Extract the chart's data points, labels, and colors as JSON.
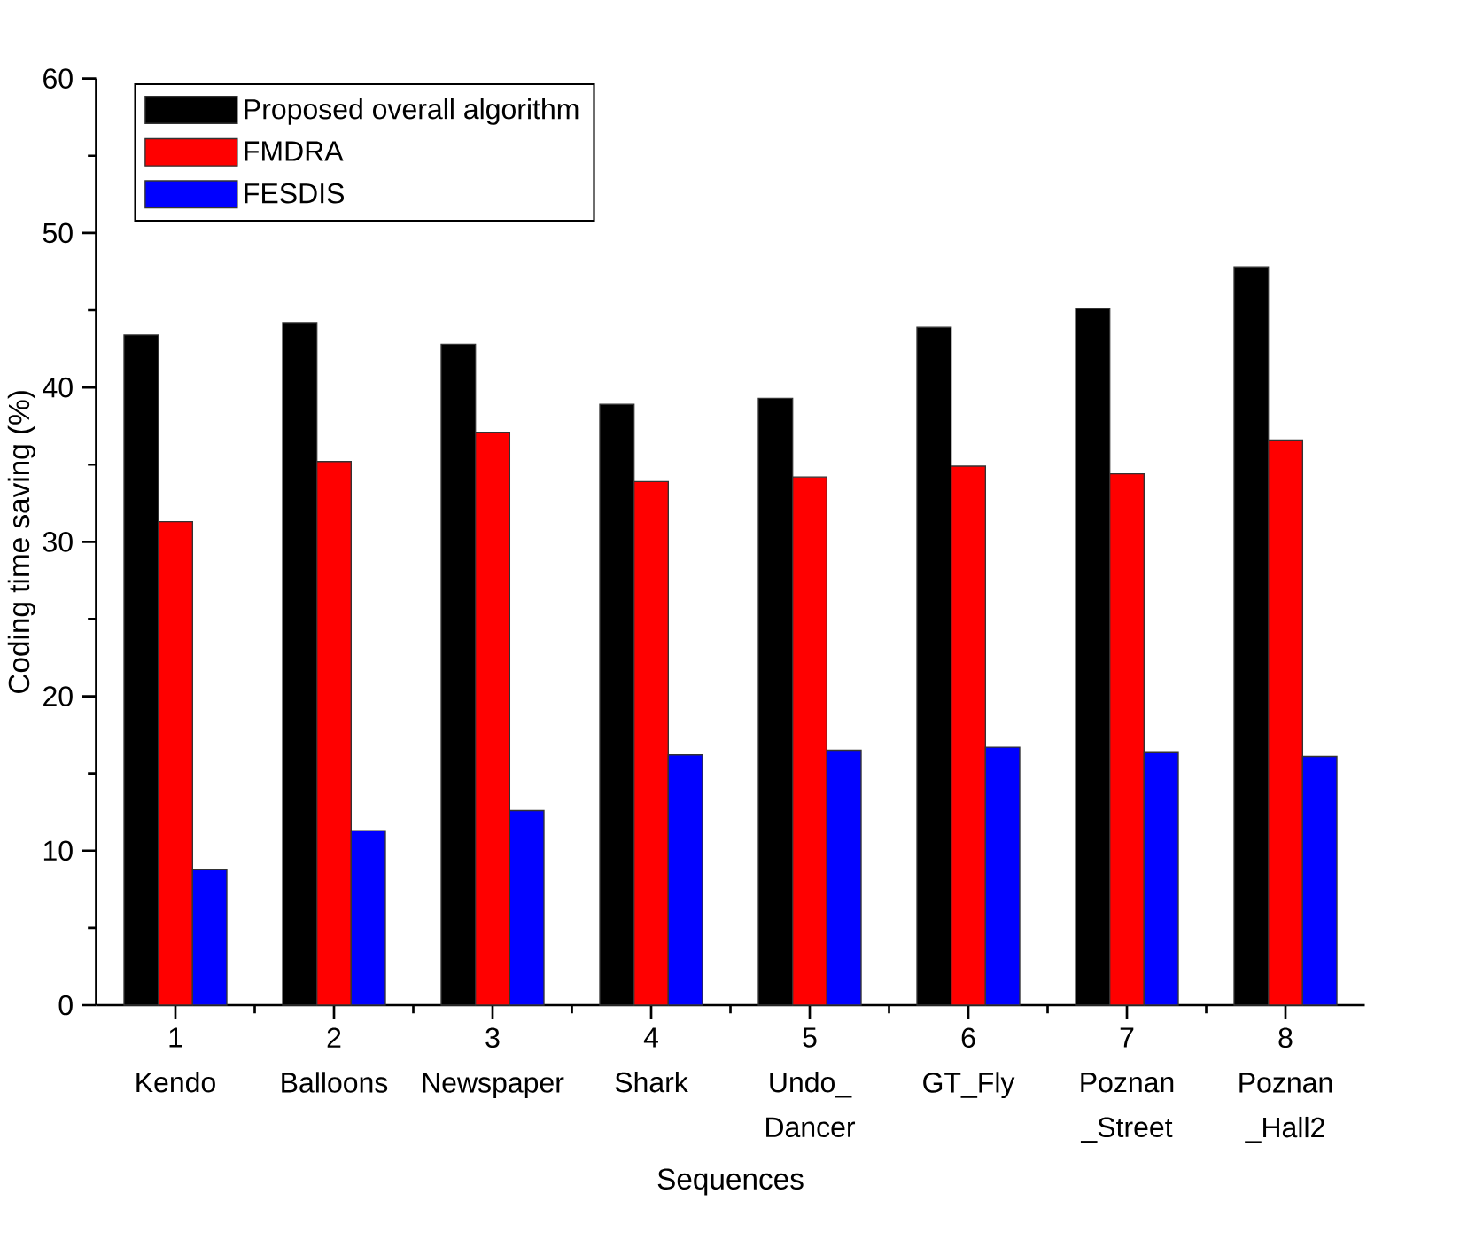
{
  "chart_data": {
    "type": "bar",
    "xlabel": "Sequences",
    "ylabel": "Coding time saving (%)",
    "categories": [
      "1 Kendo",
      "2 Balloons",
      "3 Newspaper",
      "4 Shark",
      "5 Undo_ Dancer",
      "6 GT_Fly",
      "7 Poznan _Street",
      "8 Poznan _Hall2"
    ],
    "series": [
      {
        "name": "Proposed overall algorithm",
        "color": "#000000",
        "values": [
          43.4,
          44.2,
          42.8,
          38.9,
          39.3,
          43.9,
          45.1,
          47.8
        ]
      },
      {
        "name": "FMDRA",
        "color": "#ff0000",
        "values": [
          31.3,
          35.2,
          37.1,
          33.9,
          34.2,
          34.9,
          34.4,
          36.6
        ]
      },
      {
        "name": "FESDIS",
        "color": "#0000ff",
        "values": [
          8.8,
          11.3,
          12.6,
          16.2,
          16.5,
          16.7,
          16.4,
          16.1
        ]
      }
    ],
    "ylim": [
      0,
      60
    ],
    "yticks": [
      0,
      10,
      20,
      30,
      40,
      50,
      60
    ],
    "grid": false,
    "legend": "top left"
  }
}
